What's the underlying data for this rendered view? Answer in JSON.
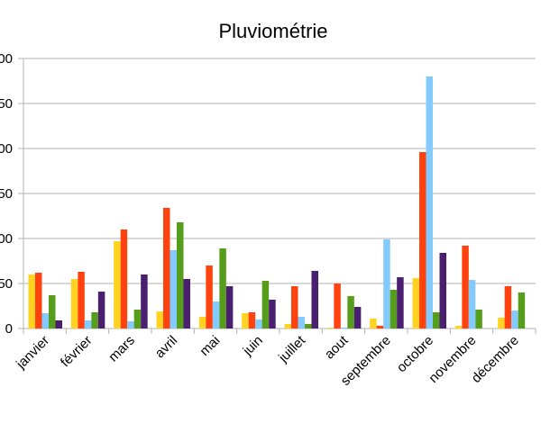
{
  "chart_data": {
    "type": "bar",
    "title": "Pluviométrie",
    "xlabel": "",
    "ylabel": "",
    "categories": [
      "janvier",
      "février",
      "mars",
      "avril",
      "mai",
      "juin",
      "juillet",
      "aout",
      "septembre",
      "octobre",
      "novembre",
      "décembre"
    ],
    "y_tick_labels": [
      "0",
      "50",
      "00",
      "50",
      "00",
      "50",
      "00"
    ],
    "ylim": [
      0,
      300
    ],
    "grid": true,
    "legend": "none",
    "series": [
      {
        "color": "#ffd320",
        "values": [
          60,
          55,
          97,
          19,
          13,
          17,
          5,
          1,
          11,
          56,
          3,
          12
        ]
      },
      {
        "color": "#ff420e",
        "values": [
          62,
          63,
          110,
          134,
          70,
          18,
          47,
          50,
          3,
          196,
          92,
          47
        ]
      },
      {
        "color": "#83caff",
        "values": [
          17,
          9,
          8,
          87,
          30,
          10,
          13,
          1,
          99,
          280,
          54,
          20
        ]
      },
      {
        "color": "#579d1c",
        "values": [
          37,
          18,
          21,
          118,
          89,
          53,
          5,
          36,
          43,
          18,
          21,
          40
        ]
      },
      {
        "color": "#4b1f6f",
        "values": [
          9,
          41,
          60,
          55,
          47,
          32,
          64,
          24,
          57,
          84,
          0,
          0
        ]
      }
    ]
  }
}
